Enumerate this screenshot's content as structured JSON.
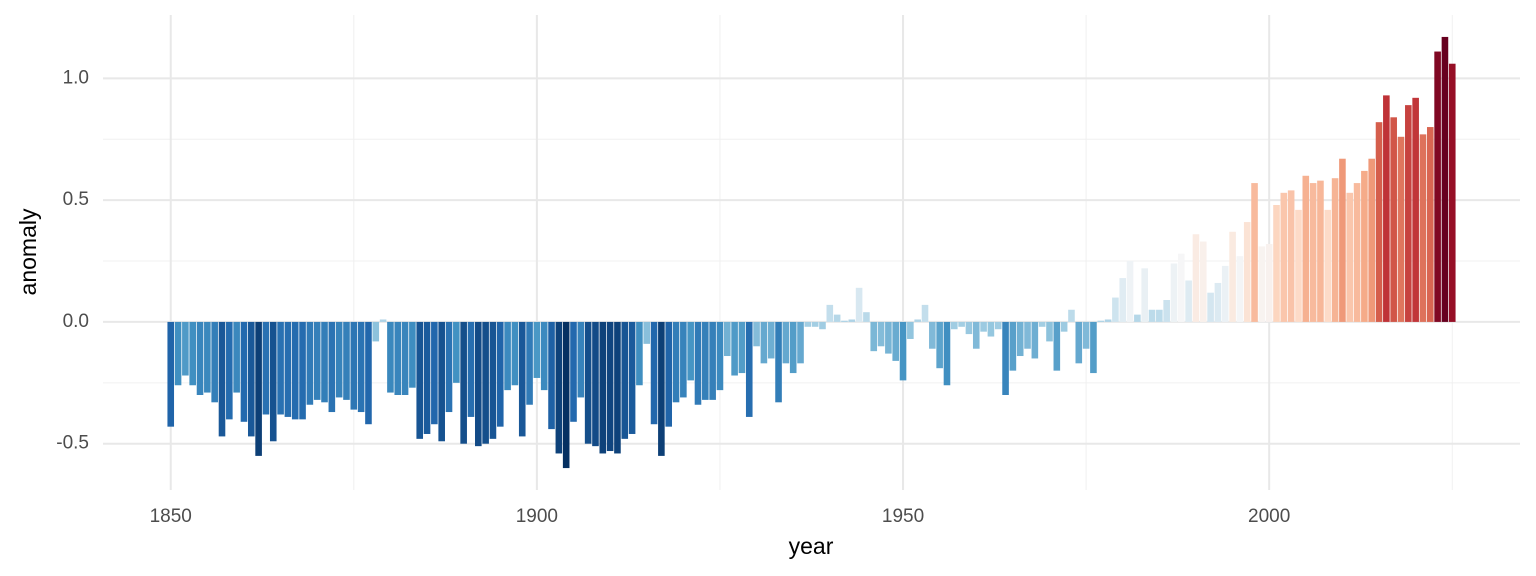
{
  "chart_data": {
    "type": "bar",
    "x_label": "year",
    "y_label": "anomaly",
    "x": [
      1850,
      1851,
      1852,
      1853,
      1854,
      1855,
      1856,
      1857,
      1858,
      1859,
      1860,
      1861,
      1862,
      1863,
      1864,
      1865,
      1866,
      1867,
      1868,
      1869,
      1870,
      1871,
      1872,
      1873,
      1874,
      1875,
      1876,
      1877,
      1878,
      1879,
      1880,
      1881,
      1882,
      1883,
      1884,
      1885,
      1886,
      1887,
      1888,
      1889,
      1890,
      1891,
      1892,
      1893,
      1894,
      1895,
      1896,
      1897,
      1898,
      1899,
      1900,
      1901,
      1902,
      1903,
      1904,
      1905,
      1906,
      1907,
      1908,
      1909,
      1910,
      1911,
      1912,
      1913,
      1914,
      1915,
      1916,
      1917,
      1918,
      1919,
      1920,
      1921,
      1922,
      1923,
      1924,
      1925,
      1926,
      1927,
      1928,
      1929,
      1930,
      1931,
      1932,
      1933,
      1934,
      1935,
      1936,
      1937,
      1938,
      1939,
      1940,
      1941,
      1942,
      1943,
      1944,
      1945,
      1946,
      1947,
      1948,
      1949,
      1950,
      1951,
      1952,
      1953,
      1954,
      1955,
      1956,
      1957,
      1958,
      1959,
      1960,
      1961,
      1962,
      1963,
      1964,
      1965,
      1966,
      1967,
      1968,
      1969,
      1970,
      1971,
      1972,
      1973,
      1974,
      1975,
      1976,
      1977,
      1978,
      1979,
      1980,
      1981,
      1982,
      1983,
      1984,
      1985,
      1986,
      1987,
      1988,
      1989,
      1990,
      1991,
      1992,
      1993,
      1994,
      1995,
      1996,
      1997,
      1998,
      1999,
      2000,
      2001,
      2002,
      2003,
      2004,
      2005,
      2006,
      2007,
      2008,
      2009,
      2010,
      2011,
      2012,
      2013,
      2014,
      2015,
      2016,
      2017,
      2018,
      2019,
      2020,
      2021,
      2022,
      2023,
      2024,
      2025
    ],
    "values": [
      -0.43,
      -0.26,
      -0.22,
      -0.26,
      -0.3,
      -0.29,
      -0.33,
      -0.47,
      -0.4,
      -0.29,
      -0.41,
      -0.47,
      -0.55,
      -0.38,
      -0.49,
      -0.38,
      -0.39,
      -0.4,
      -0.4,
      -0.34,
      -0.32,
      -0.33,
      -0.37,
      -0.31,
      -0.32,
      -0.36,
      -0.37,
      -0.42,
      -0.08,
      0.01,
      -0.29,
      -0.3,
      -0.3,
      -0.27,
      -0.48,
      -0.46,
      -0.42,
      -0.49,
      -0.37,
      -0.25,
      -0.5,
      -0.39,
      -0.51,
      -0.5,
      -0.48,
      -0.43,
      -0.28,
      -0.26,
      -0.47,
      -0.34,
      -0.23,
      -0.28,
      -0.44,
      -0.54,
      -0.6,
      -0.41,
      -0.31,
      -0.5,
      -0.51,
      -0.54,
      -0.53,
      -0.54,
      -0.48,
      -0.46,
      -0.26,
      -0.09,
      -0.42,
      -0.55,
      -0.43,
      -0.33,
      -0.31,
      -0.24,
      -0.34,
      -0.32,
      -0.32,
      -0.28,
      -0.14,
      -0.22,
      -0.21,
      -0.39,
      -0.1,
      -0.17,
      -0.15,
      -0.33,
      -0.17,
      -0.21,
      -0.17,
      -0.02,
      -0.02,
      -0.03,
      0.07,
      0.03,
      0.005,
      0.01,
      0.14,
      0.04,
      -0.12,
      -0.1,
      -0.13,
      -0.16,
      -0.24,
      -0.07,
      0.01,
      0.07,
      -0.11,
      -0.19,
      -0.26,
      -0.03,
      -0.02,
      -0.05,
      -0.11,
      -0.04,
      -0.06,
      -0.03,
      -0.3,
      -0.2,
      -0.14,
      -0.11,
      -0.15,
      -0.02,
      -0.08,
      -0.2,
      -0.04,
      0.05,
      -0.17,
      -0.11,
      -0.21,
      0.005,
      0.01,
      0.1,
      0.18,
      0.25,
      0.03,
      0.22,
      0.05,
      0.05,
      0.09,
      0.24,
      0.28,
      0.17,
      0.36,
      0.33,
      0.12,
      0.16,
      0.23,
      0.37,
      0.27,
      0.41,
      0.57,
      0.31,
      0.32,
      0.48,
      0.53,
      0.54,
      0.46,
      0.6,
      0.57,
      0.58,
      0.46,
      0.59,
      0.67,
      0.53,
      0.57,
      0.62,
      0.67,
      0.82,
      0.93,
      0.84,
      0.76,
      0.89,
      0.92,
      0.77,
      0.8,
      1.11,
      1.17,
      1.06
    ],
    "fill_palette": [
      "#053061",
      "#2166ac",
      "#4393c3",
      "#92c5de",
      "#d1e5f0",
      "#f7f7f7",
      "#fddbc7",
      "#f4a582",
      "#d6604d",
      "#b2182b",
      "#67001f"
    ],
    "xlim": [
      1840.75,
      2034.25
    ],
    "ylim": [
      -0.69,
      1.26
    ],
    "xticks": [
      1850,
      1900,
      1950,
      2000
    ],
    "yticks": [
      -0.5,
      {
        "value": 0,
        "label": "0.0"
      },
      0.5,
      {
        "value": 1,
        "label": "1.0"
      }
    ],
    "xminorticks": [
      1875,
      1925,
      1975,
      2025
    ],
    "yminorticks": [
      -0.25,
      0.25,
      0.75
    ],
    "grid": true
  }
}
